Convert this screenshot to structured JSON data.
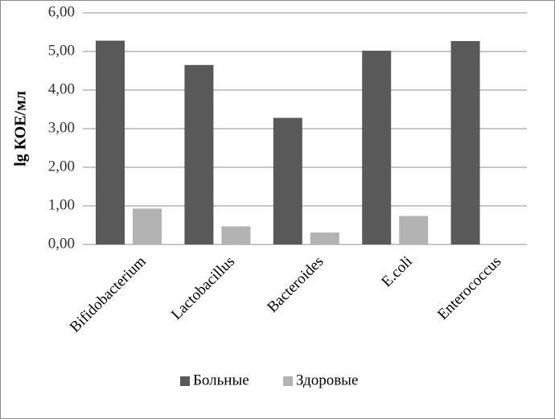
{
  "chart_data": {
    "type": "bar",
    "title": "",
    "xlabel": "",
    "ylabel": "lg КОЕ/мл",
    "categories": [
      "Bifidobacterium",
      "Lactobacillus",
      "Bacteroides",
      "E.coli",
      "Enterococcus"
    ],
    "series": [
      {
        "name": "Больные",
        "color": "#595959",
        "values": [
          5.28,
          4.65,
          3.28,
          5.02,
          5.27
        ]
      },
      {
        "name": "Здоровые",
        "color": "#b3b3b3",
        "values": [
          0.93,
          0.47,
          0.31,
          0.74,
          0
        ]
      }
    ],
    "ylim": [
      0,
      6
    ],
    "yticks": [
      "0,00",
      "1,00",
      "2,00",
      "3,00",
      "4,00",
      "5,00",
      "6,00"
    ],
    "grid": true,
    "legend_position": "bottom"
  }
}
